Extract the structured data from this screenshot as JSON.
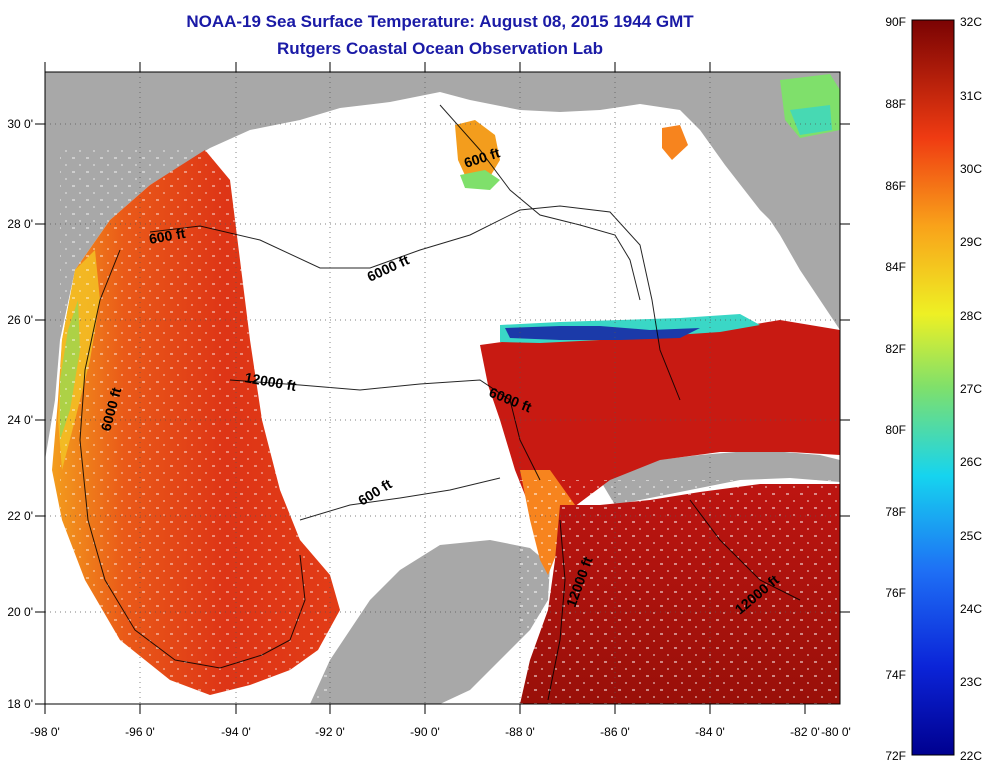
{
  "title": {
    "line1": "NOAA-19 Sea Surface Temperature:  August 08, 2015 1944 GMT",
    "line2": "Rutgers Coastal Ocean Observation Lab"
  },
  "axes": {
    "lon_ticks": [
      "-98 0'",
      "-96 0'",
      "-94 0'",
      "-92 0'",
      "-90 0'",
      "-88 0'",
      "-86 0'",
      "-84 0'",
      "-82 0'",
      "-80 0'"
    ],
    "lat_ticks": [
      "30 0'",
      "28 0'",
      "26 0'",
      "24 0'",
      "22 0'",
      "20 0'",
      "18 0'"
    ]
  },
  "contours": {
    "labels": [
      "600 ft",
      "600 ft",
      "6000 ft",
      "12000 ft",
      "6000 ft",
      "6000 ft",
      "600 ft",
      "12000 ft",
      "12000 ft"
    ]
  },
  "colorbar": {
    "fahrenheit": [
      "90F",
      "88F",
      "86F",
      "84F",
      "82F",
      "80F",
      "78F",
      "76F",
      "74F",
      "72F"
    ],
    "celsius": [
      "32C",
      "31C",
      "30C",
      "29C",
      "28C",
      "27C",
      "26C",
      "25C",
      "24C",
      "23C",
      "22C"
    ]
  },
  "colors": {
    "title": "#1a1aa6",
    "land": "#a8a8a8",
    "no_data": "#ffffff",
    "sst_hot": "#b30f0f",
    "sst_warm": "#e23214",
    "sst_mid": "#f7841e",
    "sst_cool": "#3ad7c6",
    "sst_cold": "#1b3aa9"
  }
}
